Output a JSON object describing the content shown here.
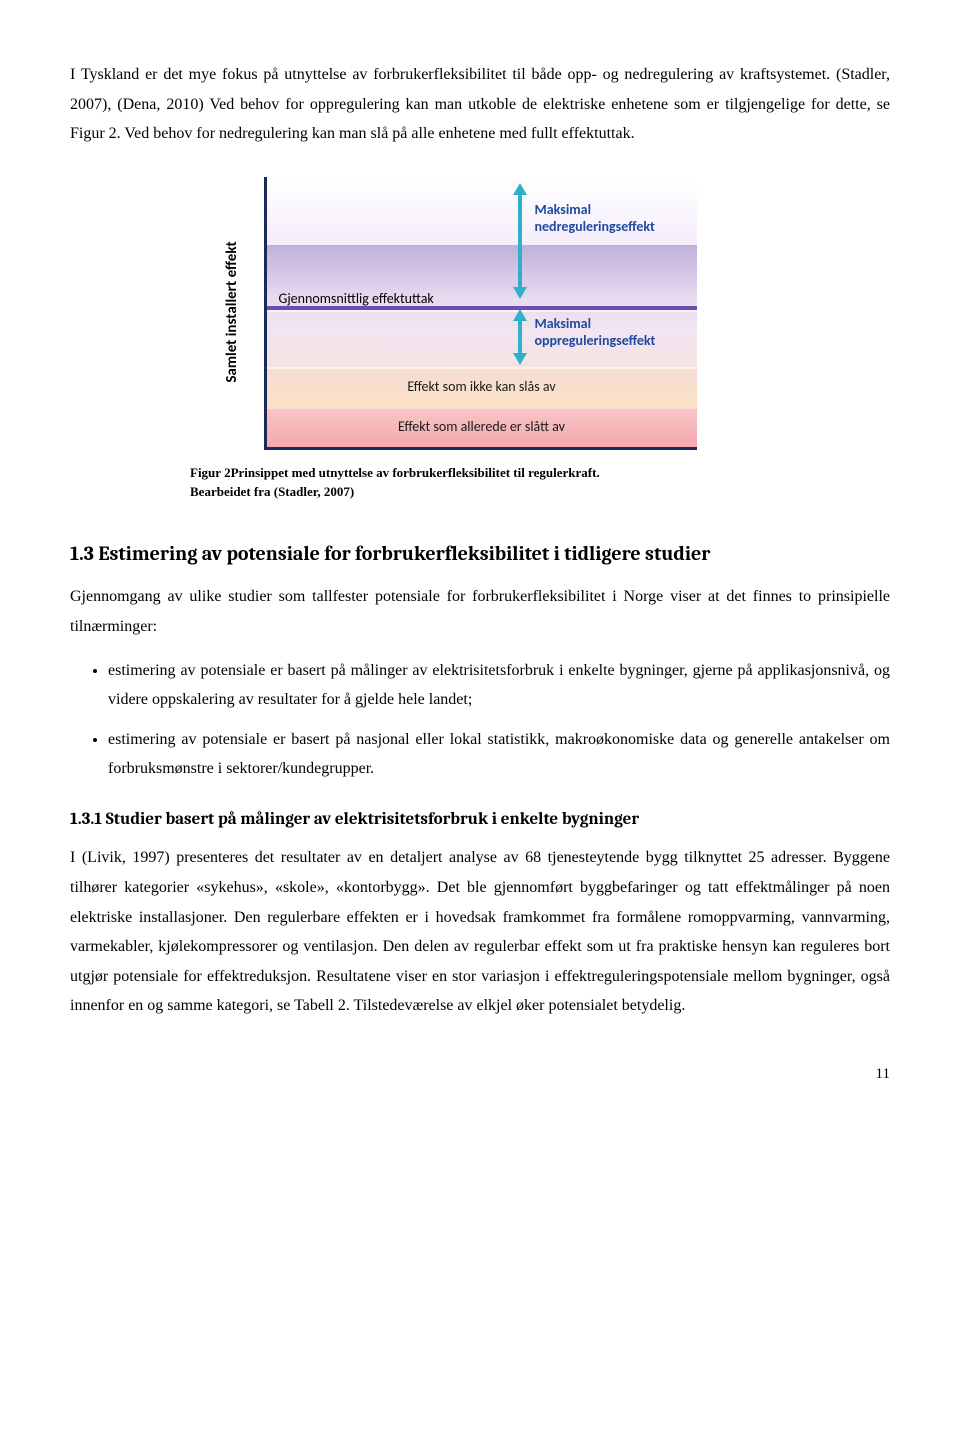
{
  "intro": {
    "p1": "I Tyskland er det mye fokus på utnyttelse av forbrukerfleksibilitet til både opp- og nedregulering av kraftsystemet. (Stadler, 2007), (Dena, 2010) Ved behov for oppregulering kan man utkoble de elektriske enhetene som er tilgjengelige for dette, se Figur 2. Ved behov for nedregulering kan man slå på alle enhetene med fullt effektuttak."
  },
  "figure": {
    "y_axis": "Samlet installert effekt",
    "avg_label": "Gjennomsnittlig effektuttak",
    "arrow_up_label": "Maksimal nedreguleringseffekt",
    "arrow_down_label": "Maksimal oppreguleringseffekt",
    "band_eff1": "Effekt som ikke kan slås av",
    "band_eff2": "Effekt som allerede er slått av",
    "caption_line1": "Figur 2Prinsippet med utnyttelse av forbrukerfleksibilitet til regulerkraft.",
    "caption_line2": "Bearbeidet fra (Stadler, 2007)",
    "colors": {
      "axis": "#1a2a5a",
      "arrow": "#2fb0c9",
      "arrow_label": "#1f4aa0",
      "avg_line": "#6a4fb0"
    }
  },
  "section": {
    "heading": "1.3 Estimering av potensiale for forbrukerfleksibilitet i tidligere studier",
    "p1": "Gjennomgang av ulike studier som tallfester potensiale for forbrukerfleksibilitet i Norge viser at det finnes to prinsipielle tilnærminger:",
    "bullets": [
      "estimering av potensiale er basert på målinger av elektrisitetsforbruk i enkelte bygninger, gjerne på applikasjonsnivå, og videre oppskalering av resultater for å gjelde hele landet;",
      "estimering av potensiale er basert på nasjonal eller lokal statistikk, makroøkonomiske data og generelle antakelser om forbruksmønstre i sektorer/kundegrupper."
    ]
  },
  "subsection": {
    "heading": "1.3.1 Studier basert på målinger av elektrisitetsforbruk i enkelte bygninger",
    "p1": "I (Livik, 1997) presenteres det resultater av en detaljert analyse av 68 tjenesteytende bygg tilknyttet 25 adresser. Byggene tilhører kategorier «sykehus», «skole», «kontorbygg». Det ble gjennomført byggbefaringer og tatt effektmålinger på noen elektriske installasjoner. Den regulerbare effekten er i hovedsak framkommet fra formålene romoppvarming, vannvarming, varmekabler, kjølekompressorer og ventilasjon. Den delen av regulerbar effekt som ut fra praktiske hensyn kan reguleres bort utgjør potensiale for effektreduksjon. Resultatene viser en stor variasjon i effektreguleringspotensiale mellom bygninger, også innenfor en og samme kategori, se Tabell 2. Tilstedeværelse av elkjel øker potensialet betydelig."
  },
  "page_number": "11"
}
